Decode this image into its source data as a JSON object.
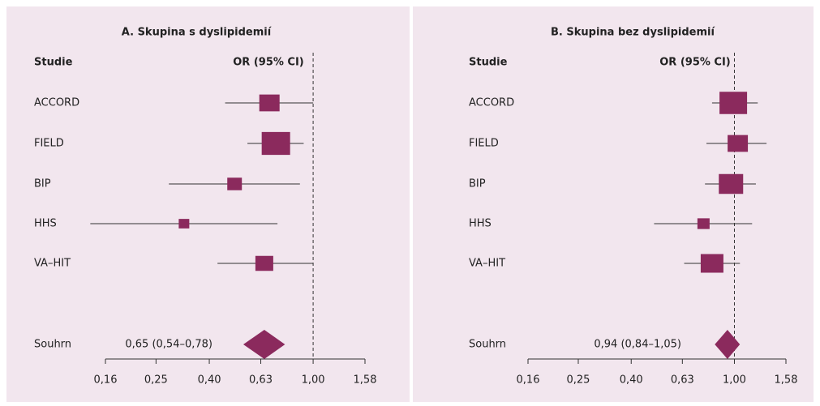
{
  "chart_data": [
    {
      "type": "forest",
      "title": "A. Skupina s dyslipidemií",
      "study_header": "Studie",
      "effect_header": "OR (95% CI)",
      "categories": [
        "ACCORD",
        "FIELD",
        "BIP",
        "HHS",
        "VA–HIT"
      ],
      "values": [
        0.68,
        0.72,
        0.5,
        0.32,
        0.65
      ],
      "ci_low": [
        0.46,
        0.56,
        0.28,
        0.14,
        0.43
      ],
      "ci_high": [
        1.0,
        0.92,
        0.89,
        0.73,
        1.0
      ],
      "weights": [
        25,
        35,
        18,
        13,
        22
      ],
      "summary": {
        "name": "Souhrn",
        "value": 0.65,
        "ci_low": 0.54,
        "ci_high": 0.78,
        "value_label": "0,65 (0,54–0,78)"
      },
      "reference_line": 1,
      "log_x": true,
      "color": "#8b2a5d",
      "xlim": [
        0.16,
        1.58
      ],
      "xticks": [
        {
          "value": 0.16,
          "label": "0,16"
        },
        {
          "value": 0.25,
          "label": "0,25"
        },
        {
          "value": 0.4,
          "label": "0,40"
        },
        {
          "value": 0.63,
          "label": "0,63"
        },
        {
          "value": 1.0,
          "label": "1,00"
        },
        {
          "value": 1.58,
          "label": "1,58"
        }
      ]
    },
    {
      "type": "forest",
      "title": "B. Skupina bez dyslipidemií",
      "study_header": "Studie",
      "effect_header": "OR (95% CI)",
      "categories": [
        "ACCORD",
        "FIELD",
        "BIP",
        "HHS",
        "VA–HIT"
      ],
      "values": [
        0.99,
        1.03,
        0.97,
        0.76,
        0.82
      ],
      "ci_low": [
        0.82,
        0.78,
        0.77,
        0.49,
        0.64
      ],
      "ci_high": [
        1.23,
        1.33,
        1.21,
        1.17,
        1.05
      ],
      "weights": [
        34,
        25,
        30,
        15,
        28
      ],
      "summary": {
        "name": "Souhrn",
        "value": 0.94,
        "ci_low": 0.84,
        "ci_high": 1.05,
        "value_label": "0,94 (0,84–1,05)"
      },
      "reference_line": 1,
      "log_x": true,
      "color": "#8b2a5d",
      "xlim": [
        0.16,
        1.58
      ],
      "xticks": [
        {
          "value": 0.16,
          "label": "0,16"
        },
        {
          "value": 0.25,
          "label": "0,25"
        },
        {
          "value": 0.4,
          "label": "0,40"
        },
        {
          "value": 0.63,
          "label": "0,63"
        },
        {
          "value": 1.0,
          "label": "1,00"
        },
        {
          "value": 1.58,
          "label": "1,58"
        }
      ]
    }
  ]
}
